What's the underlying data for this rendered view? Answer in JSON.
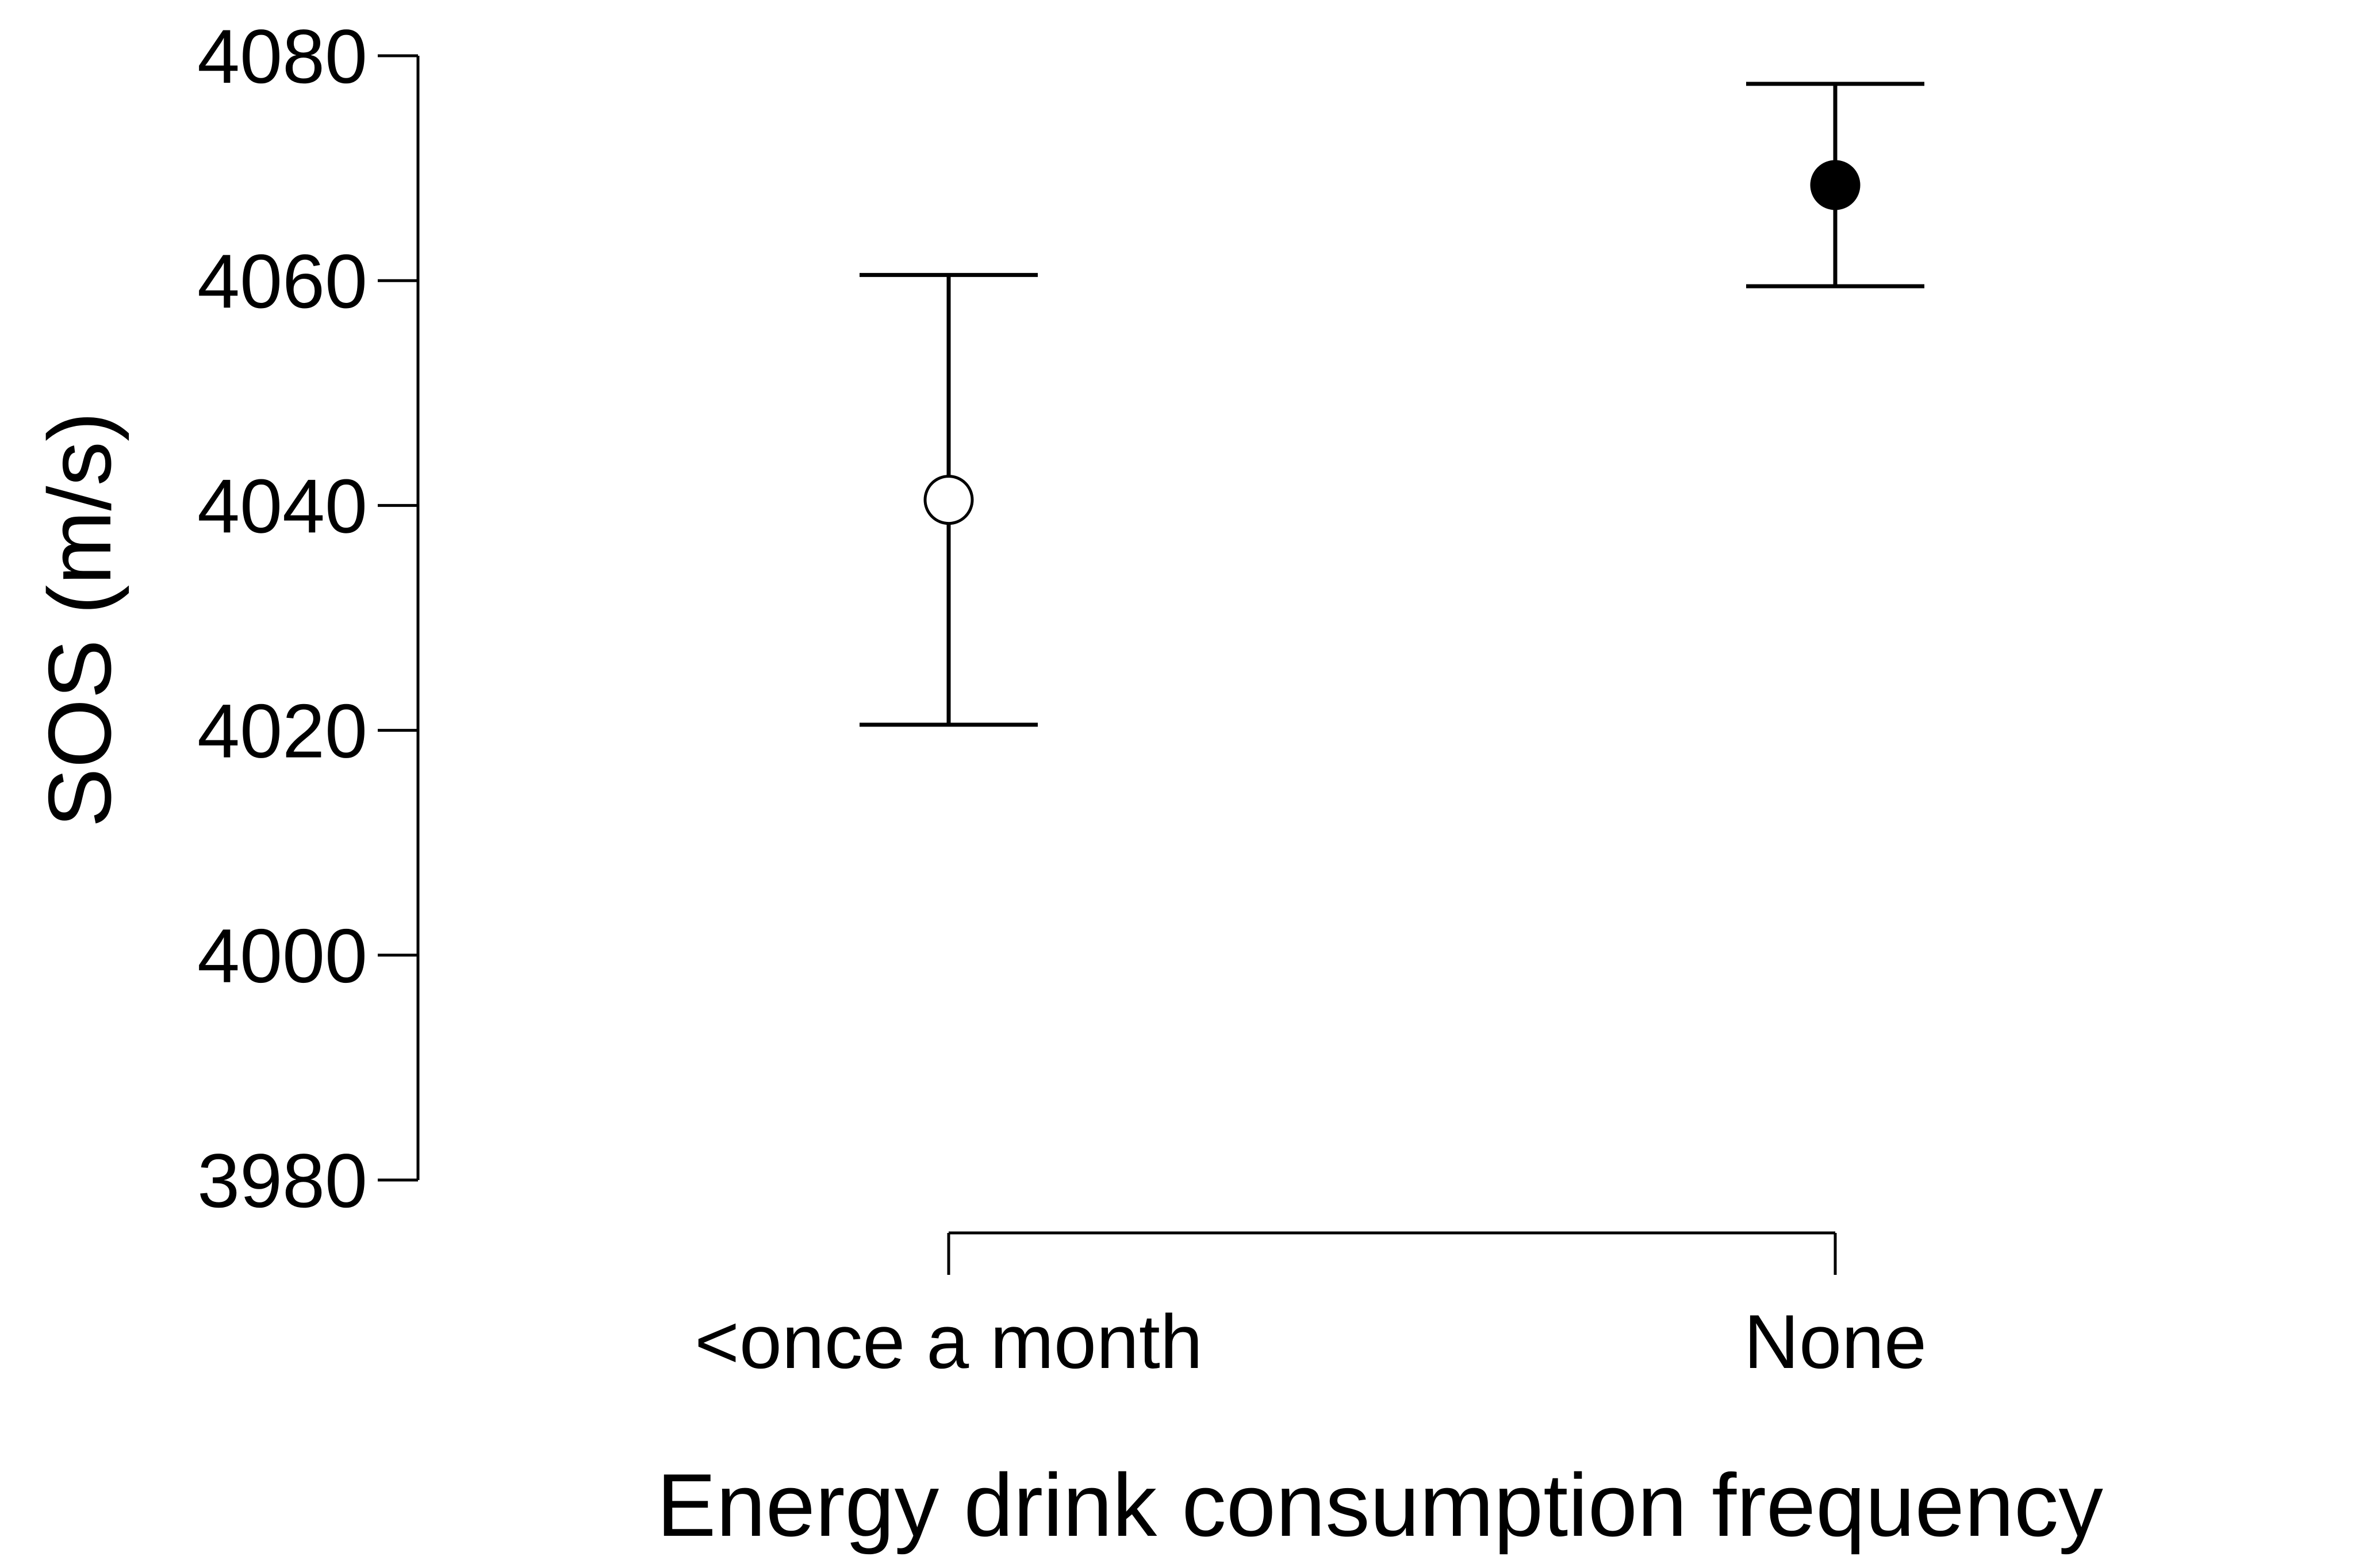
{
  "chart_data": {
    "type": "scatter",
    "title": "",
    "xlabel": "Energy drink consumption frequency",
    "ylabel": "SOS (m/s)",
    "categories": [
      "<once a month",
      "None"
    ],
    "series": [
      {
        "name": "SOS (m/s)",
        "mean": [
          4040.5,
          4068.5
        ],
        "ci_lower": [
          4020.5,
          4059.5
        ],
        "ci_upper": [
          4060.5,
          4077.5
        ],
        "marker_fill": [
          "open",
          "filled"
        ]
      }
    ],
    "ylim": [
      3980,
      4080
    ],
    "yticks": [
      3980,
      4000,
      4020,
      4040,
      4060,
      4080
    ],
    "ytick_labels": [
      "3980",
      "4000",
      "4020",
      "4040",
      "4060",
      "4080"
    ],
    "grid": false,
    "legend": "none"
  },
  "colors": {
    "ink": "#000000",
    "background": "#ffffff"
  }
}
